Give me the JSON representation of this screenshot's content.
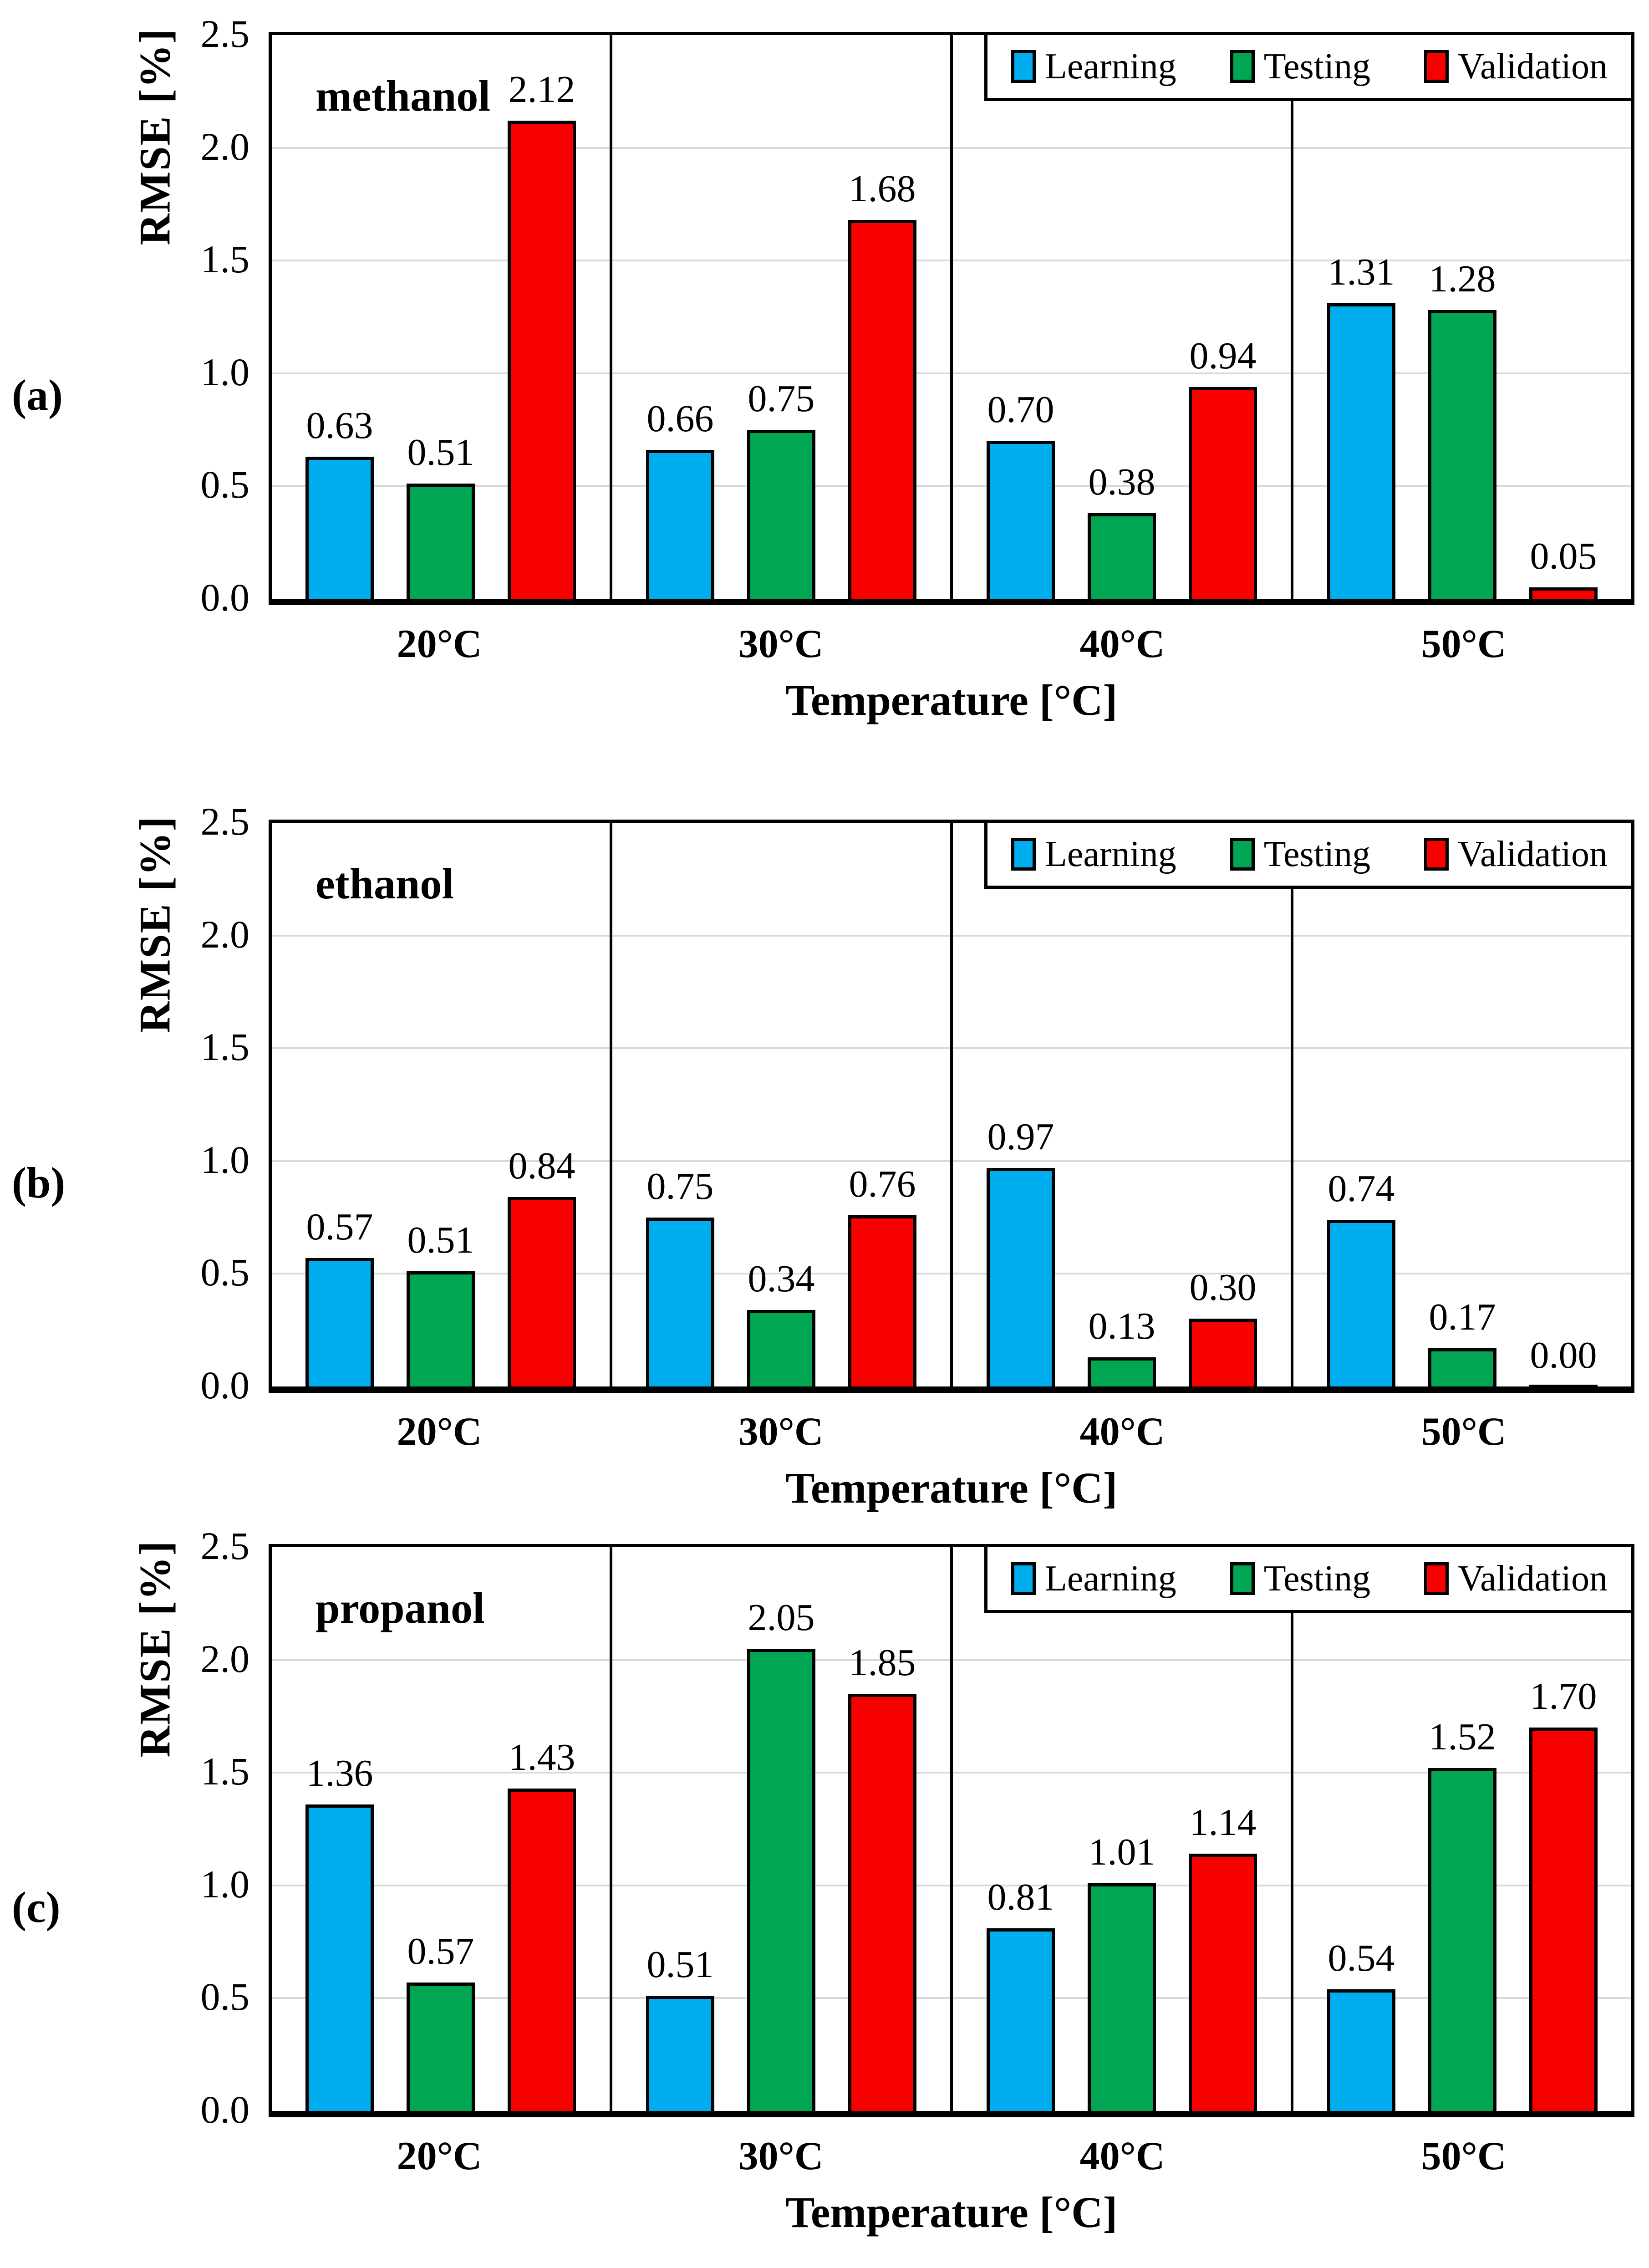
{
  "figure": {
    "background": "#FFFFFF",
    "panels": [
      {
        "label": "(a)"
      },
      {
        "label": "(b)"
      },
      {
        "label": "(c)"
      }
    ]
  },
  "colors": {
    "learning": "#00AEEF",
    "testing": "#00A651",
    "validation": "#F80000",
    "grid": "#D9D9D9",
    "axis": "#000000"
  },
  "axes": {
    "y_label": "RMSE  [%]",
    "x_label": "Temperature [°C]",
    "y_ticks": [
      "2.5",
      "2.0",
      "1.5",
      "1.0",
      "0.5",
      "0.0"
    ]
  },
  "chart_data": [
    {
      "type": "bar",
      "title": "methanol",
      "panel_label": "(a)",
      "categories": [
        "20°C",
        "30°C",
        "40°C",
        "50°C"
      ],
      "series": [
        {
          "name": "Learning",
          "color": "#00AEEF",
          "values": [
            0.63,
            0.66,
            0.7,
            1.31
          ]
        },
        {
          "name": "Testing",
          "color": "#00A651",
          "values": [
            0.51,
            0.75,
            0.38,
            1.28
          ]
        },
        {
          "name": "Validation",
          "color": "#F80000",
          "values": [
            2.12,
            1.68,
            0.94,
            0.05
          ]
        }
      ],
      "xlabel": "Temperature [°C]",
      "ylabel": "RMSE  [%]",
      "ylim": [
        0,
        2.5
      ],
      "ytick_step": 0.5,
      "grid": "horizontal",
      "legend_position": "top-right"
    },
    {
      "type": "bar",
      "title": "ethanol",
      "panel_label": "(b)",
      "categories": [
        "20°C",
        "30°C",
        "40°C",
        "50°C"
      ],
      "series": [
        {
          "name": "Learning",
          "color": "#00AEEF",
          "values": [
            0.57,
            0.75,
            0.97,
            0.74
          ]
        },
        {
          "name": "Testing",
          "color": "#00A651",
          "values": [
            0.51,
            0.34,
            0.13,
            0.17
          ]
        },
        {
          "name": "Validation",
          "color": "#F80000",
          "values": [
            0.84,
            0.76,
            0.3,
            0.0
          ]
        }
      ],
      "xlabel": "Temperature [°C]",
      "ylabel": "RMSE  [%]",
      "ylim": [
        0,
        2.5
      ],
      "ytick_step": 0.5,
      "grid": "horizontal",
      "legend_position": "top-right"
    },
    {
      "type": "bar",
      "title": "propanol",
      "panel_label": "(c)",
      "categories": [
        "20°C",
        "30°C",
        "40°C",
        "50°C"
      ],
      "series": [
        {
          "name": "Learning",
          "color": "#00AEEF",
          "values": [
            1.36,
            0.51,
            0.81,
            0.54
          ]
        },
        {
          "name": "Testing",
          "color": "#00A651",
          "values": [
            0.57,
            2.05,
            1.01,
            1.52
          ]
        },
        {
          "name": "Validation",
          "color": "#F80000",
          "values": [
            1.43,
            1.85,
            1.14,
            1.7
          ]
        }
      ],
      "xlabel": "Temperature [°C]",
      "ylabel": "RMSE  [%]",
      "ylim": [
        0,
        2.5
      ],
      "ytick_step": 0.5,
      "grid": "horizontal",
      "legend_position": "top-right"
    }
  ]
}
